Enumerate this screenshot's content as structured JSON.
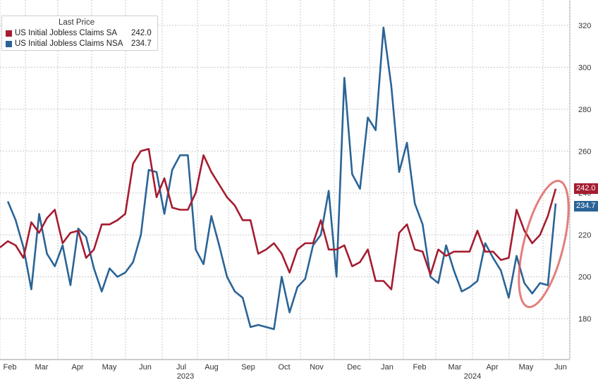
{
  "chart_data": {
    "type": "line",
    "title": "",
    "xlabel": "",
    "ylabel": "",
    "ylim": [
      160,
      330
    ],
    "y_ticks": [
      180,
      200,
      220,
      240,
      260,
      280,
      300,
      320
    ],
    "y_axis_position": "right",
    "grid": true,
    "legend_placement": "top-left",
    "legend_title": "Last Price",
    "month_labels": [
      "Feb",
      "Mar",
      "Apr",
      "May",
      "Jun",
      "Jul",
      "Aug",
      "Sep",
      "Oct",
      "Nov",
      "Dec",
      "Jan",
      "Feb",
      "Mar",
      "Apr",
      "May",
      "Jun"
    ],
    "year_labels": [
      "2023",
      "2024"
    ],
    "series": [
      {
        "name": "US Initial Jobless Claims SA",
        "last_value": "242.0",
        "color": "#a51c30",
        "values": [
          214,
          217,
          215,
          209,
          226,
          221,
          228,
          232,
          216,
          221,
          222,
          209,
          213,
          225,
          225,
          227,
          230,
          254,
          260,
          261,
          238,
          247,
          233,
          232,
          232,
          240,
          258,
          250,
          244,
          238,
          234,
          227,
          227,
          211,
          213,
          216,
          211,
          202,
          213,
          216,
          216,
          227,
          213,
          213,
          215,
          205,
          207,
          213,
          198,
          198,
          194,
          221,
          225,
          213,
          212,
          201,
          213,
          210,
          212,
          212,
          212,
          222,
          212,
          212,
          208,
          209,
          232,
          222,
          216,
          220,
          229,
          242
        ]
      },
      {
        "name": "US Initial Jobless Claims NSA",
        "last_value": "234.7",
        "color": "#2a6496",
        "values": [
          236,
          227,
          214,
          194,
          230,
          211,
          205,
          215,
          196,
          223,
          219,
          204,
          193,
          204,
          200,
          202,
          207,
          220,
          251,
          250,
          230,
          251,
          258,
          258,
          213,
          206,
          229,
          215,
          200,
          193,
          190,
          176,
          177,
          176,
          175,
          200,
          183,
          195,
          199,
          215,
          220,
          241,
          200,
          295,
          249,
          242,
          276,
          270,
          319,
          291,
          250,
          264,
          235,
          225,
          200,
          197,
          215,
          203,
          193,
          195,
          198,
          216,
          209,
          203,
          190,
          210,
          197,
          192,
          197,
          196,
          235
        ]
      }
    ]
  }
}
